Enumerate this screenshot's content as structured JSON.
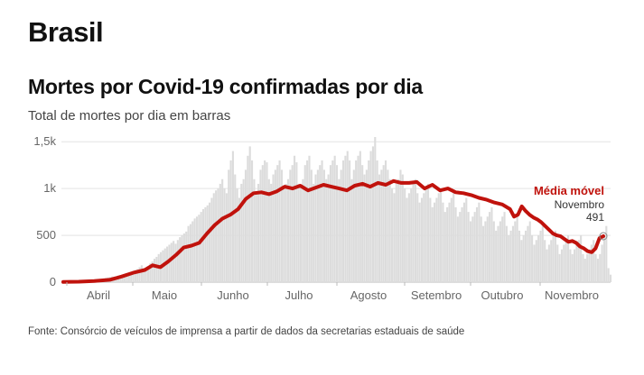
{
  "header": {
    "country": "Brasil",
    "title": "Mortes por Covid-19 confirmadas por dia",
    "subtitle": "Total de mortes por dia em barras"
  },
  "footer": {
    "source": "Fonte: Consórcio de veículos de imprensa a partir de dados da secretarias estaduais de saúde"
  },
  "colors": {
    "bars": "#dcdcdc",
    "line": "#c0120c",
    "grid": "#e3e3e3",
    "text": "#111111",
    "muted": "#666666"
  },
  "chart_data": {
    "type": "bar",
    "title": "Mortes por Covid-19 confirmadas por dia",
    "subtitle": "Total de mortes por dia em barras",
    "y_ticks": [
      {
        "value": 0,
        "label": "0"
      },
      {
        "value": 500,
        "label": "500"
      },
      {
        "value": 1000,
        "label": "1k"
      },
      {
        "value": 1500,
        "label": "1,5k"
      }
    ],
    "ylim": [
      0,
      1550
    ],
    "x_month_labels": [
      "Abril",
      "Maio",
      "Junho",
      "Julho",
      "Agosto",
      "Setembro",
      "Outubro",
      "Novembro"
    ],
    "x_range_days": [
      0,
      246
    ],
    "grid": true,
    "annotation": {
      "label": "Média móvel",
      "month": "Novembro",
      "value_label": "491",
      "value": 491
    },
    "series": [
      {
        "name": "Média móvel",
        "type": "line",
        "points": [
          [
            0,
            2
          ],
          [
            8,
            5
          ],
          [
            16,
            12
          ],
          [
            24,
            25
          ],
          [
            30,
            60
          ],
          [
            36,
            100
          ],
          [
            42,
            130
          ],
          [
            46,
            180
          ],
          [
            50,
            160
          ],
          [
            54,
            220
          ],
          [
            58,
            290
          ],
          [
            62,
            370
          ],
          [
            66,
            390
          ],
          [
            70,
            420
          ],
          [
            74,
            520
          ],
          [
            78,
            610
          ],
          [
            82,
            680
          ],
          [
            86,
            720
          ],
          [
            90,
            780
          ],
          [
            94,
            890
          ],
          [
            98,
            950
          ],
          [
            102,
            960
          ],
          [
            106,
            940
          ],
          [
            110,
            970
          ],
          [
            114,
            1020
          ],
          [
            118,
            1000
          ],
          [
            122,
            1030
          ],
          [
            126,
            980
          ],
          [
            130,
            1010
          ],
          [
            134,
            1040
          ],
          [
            138,
            1020
          ],
          [
            142,
            1000
          ],
          [
            146,
            980
          ],
          [
            150,
            1030
          ],
          [
            154,
            1050
          ],
          [
            158,
            1020
          ],
          [
            162,
            1060
          ],
          [
            166,
            1040
          ],
          [
            170,
            1080
          ],
          [
            174,
            1060
          ],
          [
            178,
            1060
          ],
          [
            182,
            1070
          ],
          [
            186,
            1000
          ],
          [
            190,
            1040
          ],
          [
            194,
            980
          ],
          [
            198,
            1000
          ],
          [
            202,
            960
          ],
          [
            206,
            950
          ],
          [
            210,
            930
          ],
          [
            214,
            900
          ],
          [
            218,
            880
          ],
          [
            222,
            850
          ],
          [
            226,
            830
          ],
          [
            230,
            780
          ],
          [
            232,
            700
          ],
          [
            234,
            720
          ],
          [
            236,
            810
          ],
          [
            238,
            760
          ],
          [
            240,
            720
          ],
          [
            242,
            690
          ],
          [
            244,
            670
          ],
          [
            246,
            640
          ],
          [
            248,
            600
          ],
          [
            250,
            560
          ],
          [
            252,
            520
          ],
          [
            254,
            500
          ],
          [
            256,
            490
          ],
          [
            258,
            460
          ],
          [
            260,
            430
          ],
          [
            262,
            440
          ],
          [
            264,
            420
          ],
          [
            266,
            380
          ],
          [
            268,
            360
          ],
          [
            270,
            330
          ],
          [
            272,
            320
          ],
          [
            274,
            360
          ],
          [
            276,
            470
          ],
          [
            278,
            491
          ]
        ]
      },
      {
        "name": "Mortes por dia",
        "type": "bar",
        "days": 279,
        "values": [
          1,
          2,
          2,
          3,
          4,
          5,
          6,
          8,
          10,
          12,
          12,
          15,
          18,
          20,
          22,
          25,
          30,
          28,
          35,
          40,
          45,
          50,
          55,
          60,
          58,
          62,
          70,
          75,
          80,
          85,
          95,
          100,
          110,
          120,
          130,
          140,
          160,
          180,
          150,
          140,
          170,
          200,
          220,
          250,
          270,
          300,
          320,
          340,
          360,
          380,
          400,
          420,
          440,
          410,
          450,
          480,
          500,
          520,
          540,
          600,
          620,
          650,
          680,
          700,
          720,
          750,
          780,
          800,
          820,
          850,
          900,
          950,
          980,
          1000,
          1050,
          1100,
          1000,
          950,
          1200,
          1300,
          1400,
          1150,
          1000,
          900,
          1050,
          1100,
          1200,
          1350,
          1450,
          1300,
          1100,
          950,
          1050,
          1200,
          1250,
          1300,
          1280,
          1100,
          1050,
          1150,
          1200,
          1250,
          1300,
          1200,
          1000,
          1050,
          1100,
          1200,
          1250,
          1350,
          1280,
          1050,
          1000,
          1100,
          1250,
          1300,
          1350,
          1200,
          1050,
          1150,
          1200,
          1250,
          1300,
          1200,
          1100,
          1150,
          1250,
          1300,
          1350,
          1250,
          1100,
          1200,
          1300,
          1350,
          1400,
          1300,
          1100,
          1200,
          1300,
          1350,
          1400,
          1250,
          1150,
          1200,
          1300,
          1400,
          1450,
          1550,
          1300,
          1150,
          1200,
          1250,
          1300,
          1200,
          1100,
          1000,
          950,
          1050,
          1100,
          1200,
          1150,
          1000,
          900,
          950,
          1000,
          1050,
          1100,
          950,
          850,
          900,
          950,
          1000,
          1050,
          900,
          800,
          850,
          900,
          950,
          1000,
          850,
          750,
          800,
          850,
          900,
          950,
          800,
          700,
          750,
          800,
          850,
          900,
          750,
          650,
          700,
          750,
          800,
          850,
          700,
          600,
          650,
          700,
          750,
          800,
          650,
          550,
          600,
          650,
          700,
          750,
          600,
          500,
          550,
          600,
          650,
          700,
          550,
          450,
          500,
          550,
          600,
          650,
          500,
          400,
          450,
          500,
          550,
          600,
          450,
          350,
          400,
          450,
          500,
          550,
          400,
          300,
          350,
          400,
          450,
          500,
          350,
          300,
          350,
          400,
          450,
          500,
          300,
          250,
          300,
          350,
          400,
          450,
          300,
          250,
          300,
          400,
          500,
          600,
          150,
          80
        ]
      }
    ]
  }
}
